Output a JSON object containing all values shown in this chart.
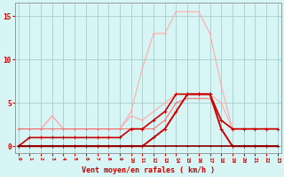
{
  "x": [
    0,
    1,
    2,
    3,
    4,
    5,
    6,
    7,
    8,
    9,
    10,
    11,
    12,
    13,
    14,
    15,
    16,
    17,
    18,
    19,
    20,
    21,
    22,
    23
  ],
  "series": [
    {
      "name": "light_pink_rafales_high",
      "color": "#ffaaaa",
      "linewidth": 0.8,
      "markersize": 2.0,
      "values": [
        2,
        2,
        2,
        3.5,
        2,
        2,
        2,
        2,
        2,
        2,
        4,
        9,
        13,
        13,
        15.5,
        15.5,
        15.5,
        13,
        7,
        2,
        2,
        2,
        2,
        2
      ]
    },
    {
      "name": "light_pink_moyen_high",
      "color": "#ffaaaa",
      "linewidth": 0.8,
      "markersize": 2.0,
      "values": [
        2,
        2,
        2,
        3.5,
        2,
        2,
        2,
        2,
        2,
        2,
        3.5,
        3,
        4,
        5,
        6,
        6,
        6,
        6,
        5,
        2,
        2,
        2,
        2,
        2
      ]
    },
    {
      "name": "medium_pink_line",
      "color": "#ee7777",
      "linewidth": 0.8,
      "markersize": 2.0,
      "values": [
        2,
        2,
        2,
        2,
        2,
        2,
        2,
        2,
        2,
        2,
        2,
        2,
        2,
        3,
        5,
        5.5,
        5.5,
        5.5,
        3,
        2,
        2,
        2,
        2,
        2
      ]
    },
    {
      "name": "dark_red_rafales",
      "color": "#cc0000",
      "linewidth": 1.2,
      "markersize": 2.5,
      "values": [
        0,
        1,
        1,
        1,
        1,
        1,
        1,
        1,
        1,
        1,
        2,
        2,
        3,
        4,
        6,
        6,
        6,
        6,
        3,
        2,
        2,
        2,
        2,
        2
      ]
    },
    {
      "name": "dark_red_moyen",
      "color": "#cc0000",
      "linewidth": 1.4,
      "markersize": 2.5,
      "values": [
        0,
        0,
        0,
        0,
        0,
        0,
        0,
        0,
        0,
        0,
        0,
        0,
        1,
        2,
        4,
        6,
        6,
        6,
        2,
        0,
        0,
        0,
        0,
        0
      ]
    },
    {
      "name": "darkest_bottom",
      "color": "#880000",
      "linewidth": 1.2,
      "markersize": 2.0,
      "values": [
        0,
        0,
        0,
        0,
        0,
        0,
        0,
        0,
        0,
        0,
        0,
        0,
        0,
        0,
        0,
        0,
        0,
        0,
        0,
        0,
        0,
        0,
        0,
        0
      ]
    }
  ],
  "xlabel": "Vent moyen/en rafales ( km/h )",
  "xlim": [
    -0.3,
    23.3
  ],
  "ylim": [
    -0.8,
    16.5
  ],
  "yticks": [
    0,
    5,
    10,
    15
  ],
  "xticks": [
    0,
    1,
    2,
    3,
    4,
    5,
    6,
    7,
    8,
    9,
    10,
    11,
    12,
    13,
    14,
    15,
    16,
    17,
    18,
    19,
    20,
    21,
    22,
    23
  ],
  "bg_color": "#d8f5f5",
  "grid_color": "#aacccc",
  "tick_label_color": "#cc0000",
  "xlabel_color": "#cc0000",
  "figsize": [
    3.2,
    2.0
  ],
  "dpi": 100
}
